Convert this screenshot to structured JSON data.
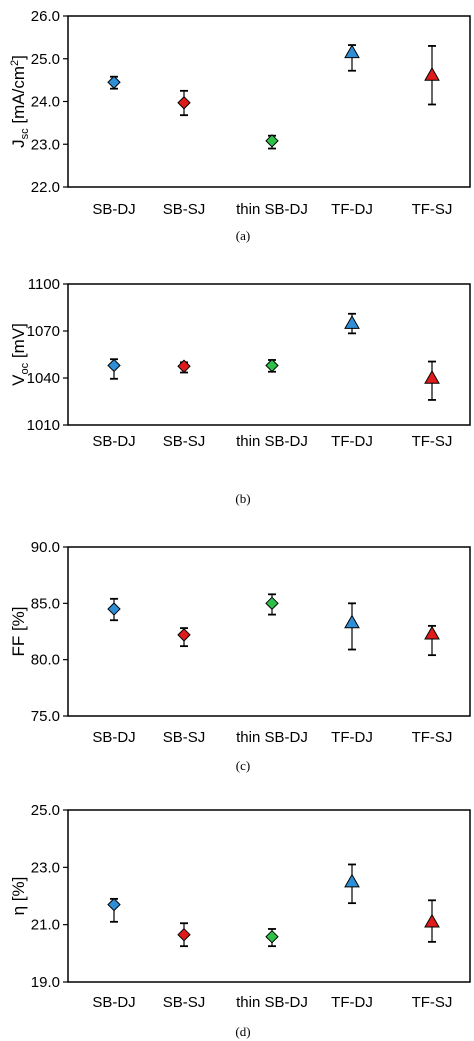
{
  "colors": {
    "SB-DJ": "#2e8fd6",
    "SB-SJ": "#e01b1b",
    "thin SB-DJ": "#2fc04a",
    "TF-DJ": "#2e8fd6",
    "TF-SJ": "#e01b1b"
  },
  "chart_data": [
    {
      "type": "scatter",
      "caption": "(a)",
      "ylabel": {
        "main": "J",
        "sub": "sc",
        "unit": " [mA/cm",
        "sup": "2",
        "end": "]"
      },
      "categories": [
        "SB-DJ",
        "SB-SJ",
        "thin SB-DJ",
        "TF-DJ",
        "TF-SJ"
      ],
      "markers": [
        "diamond",
        "diamond",
        "diamond",
        "triangle",
        "triangle"
      ],
      "ylim": [
        22.0,
        26.0
      ],
      "yticks": [
        22.0,
        23.0,
        24.0,
        25.0,
        26.0
      ],
      "ytick_labels": [
        "22.0",
        "23.0",
        "24.0",
        "25.0",
        "26.0"
      ],
      "values": [
        24.45,
        23.97,
        23.08,
        25.15,
        24.62
      ],
      "err_low": [
        24.3,
        23.68,
        22.9,
        24.72,
        23.93
      ],
      "err_high": [
        24.58,
        24.25,
        23.2,
        25.32,
        25.3
      ]
    },
    {
      "type": "scatter",
      "caption": "(b)",
      "ylabel": {
        "main": "V",
        "sub": "oc",
        "unit": " [mV]",
        "sup": "",
        "end": ""
      },
      "categories": [
        "SB-DJ",
        "SB-SJ",
        "thin SB-DJ",
        "TF-DJ",
        "TF-SJ"
      ],
      "markers": [
        "diamond",
        "diamond",
        "diamond",
        "triangle",
        "triangle"
      ],
      "ylim": [
        1010,
        1100
      ],
      "yticks": [
        1010,
        1040,
        1070,
        1100
      ],
      "ytick_labels": [
        "1010",
        "1040",
        "1070",
        "1100"
      ],
      "values": [
        1048,
        1047.5,
        1048,
        1075,
        1040
      ],
      "err_low": [
        1039.5,
        1043.5,
        1044,
        1068.5,
        1026
      ],
      "err_high": [
        1052,
        1050,
        1051.5,
        1081,
        1050.5
      ]
    },
    {
      "type": "scatter",
      "caption": "(c)",
      "ylabel": {
        "main": "FF [%]",
        "sub": "",
        "unit": "",
        "sup": "",
        "end": ""
      },
      "categories": [
        "SB-DJ",
        "SB-SJ",
        "thin SB-DJ",
        "TF-DJ",
        "TF-SJ"
      ],
      "markers": [
        "diamond",
        "diamond",
        "diamond",
        "triangle",
        "triangle"
      ],
      "ylim": [
        75.0,
        90.0
      ],
      "yticks": [
        75.0,
        80.0,
        85.0,
        90.0
      ],
      "ytick_labels": [
        "75.0",
        "80.0",
        "85.0",
        "90.0"
      ],
      "values": [
        84.5,
        82.2,
        85.0,
        83.3,
        82.3
      ],
      "err_low": [
        83.5,
        81.2,
        84.0,
        80.9,
        80.4
      ],
      "err_high": [
        85.4,
        82.8,
        85.8,
        85.0,
        83.0
      ]
    },
    {
      "type": "scatter",
      "caption": "(d)",
      "ylabel": {
        "main": "η [%]",
        "sub": "",
        "unit": "",
        "sup": "",
        "end": ""
      },
      "categories": [
        "SB-DJ",
        "SB-SJ",
        "thin SB-DJ",
        "TF-DJ",
        "TF-SJ"
      ],
      "markers": [
        "diamond",
        "diamond",
        "diamond",
        "triangle",
        "triangle"
      ],
      "ylim": [
        19.0,
        25.0
      ],
      "yticks": [
        19.0,
        21.0,
        23.0,
        25.0
      ],
      "ytick_labels": [
        "19.0",
        "21.0",
        "23.0",
        "25.0"
      ],
      "values": [
        21.7,
        20.65,
        20.58,
        22.5,
        21.1
      ],
      "err_low": [
        21.1,
        20.25,
        20.25,
        21.75,
        20.4
      ],
      "err_high": [
        21.9,
        21.05,
        20.85,
        23.1,
        21.85
      ]
    }
  ]
}
